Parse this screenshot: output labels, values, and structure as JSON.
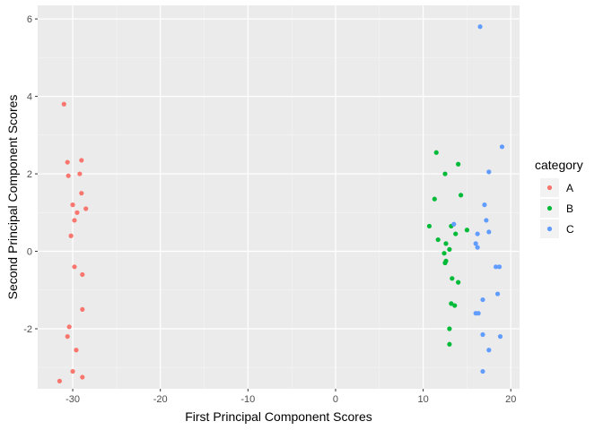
{
  "chart_data": {
    "type": "scatter",
    "xlabel": "First Principal Component Scores",
    "ylabel": "Second Principal Component Scores",
    "xlim": [
      -34,
      21
    ],
    "ylim": [
      -3.55,
      6.35
    ],
    "x_ticks": [
      -30,
      -20,
      -10,
      0,
      10,
      20
    ],
    "y_ticks": [
      -2,
      0,
      2,
      4,
      6
    ],
    "grid": true,
    "legend_title": "category",
    "legend_position": "right",
    "series": [
      {
        "name": "A",
        "color": "#F8766D",
        "points": [
          [
            -31.0,
            3.8
          ],
          [
            -30.6,
            2.3
          ],
          [
            -30.5,
            1.95
          ],
          [
            -29.0,
            2.35
          ],
          [
            -29.2,
            2.0
          ],
          [
            -29.0,
            1.5
          ],
          [
            -30.0,
            1.2
          ],
          [
            -28.5,
            1.1
          ],
          [
            -29.5,
            1.0
          ],
          [
            -29.8,
            0.8
          ],
          [
            -30.2,
            0.4
          ],
          [
            -29.8,
            -0.4
          ],
          [
            -28.9,
            -0.6
          ],
          [
            -28.9,
            -1.5
          ],
          [
            -30.4,
            -1.95
          ],
          [
            -30.6,
            -2.2
          ],
          [
            -29.6,
            -2.55
          ],
          [
            -30.0,
            -3.1
          ],
          [
            -31.5,
            -3.35
          ],
          [
            -28.9,
            -3.25
          ]
        ]
      },
      {
        "name": "B",
        "color": "#00BA38",
        "points": [
          [
            11.5,
            2.55
          ],
          [
            14.0,
            2.25
          ],
          [
            12.5,
            2.0
          ],
          [
            14.3,
            1.45
          ],
          [
            11.3,
            1.35
          ],
          [
            10.7,
            0.65
          ],
          [
            13.2,
            0.65
          ],
          [
            15.0,
            0.55
          ],
          [
            13.7,
            0.45
          ],
          [
            11.7,
            0.3
          ],
          [
            12.6,
            0.2
          ],
          [
            12.4,
            -0.05
          ],
          [
            13.0,
            0.05
          ],
          [
            12.6,
            -0.25
          ],
          [
            12.5,
            -0.3
          ],
          [
            13.3,
            -0.7
          ],
          [
            14.0,
            -0.8
          ],
          [
            13.2,
            -1.35
          ],
          [
            13.6,
            -1.4
          ],
          [
            13.0,
            -2.0
          ],
          [
            13.0,
            -2.4
          ]
        ]
      },
      {
        "name": "C",
        "color": "#619CFF",
        "points": [
          [
            16.5,
            5.8
          ],
          [
            19.0,
            2.7
          ],
          [
            17.5,
            2.05
          ],
          [
            17.0,
            1.2
          ],
          [
            17.2,
            0.8
          ],
          [
            13.5,
            0.7
          ],
          [
            17.5,
            0.5
          ],
          [
            16.2,
            0.45
          ],
          [
            16.0,
            0.2
          ],
          [
            16.2,
            0.1
          ],
          [
            18.3,
            -0.4
          ],
          [
            18.7,
            -0.4
          ],
          [
            18.5,
            -1.1
          ],
          [
            16.8,
            -1.25
          ],
          [
            16.0,
            -1.6
          ],
          [
            16.3,
            -1.6
          ],
          [
            16.8,
            -2.15
          ],
          [
            18.8,
            -2.2
          ],
          [
            17.5,
            -2.55
          ],
          [
            16.8,
            -3.1
          ]
        ]
      }
    ]
  }
}
